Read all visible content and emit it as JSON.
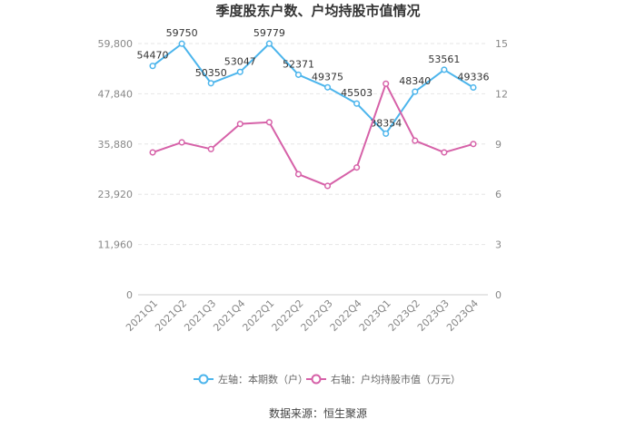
{
  "chart_data": {
    "type": "line",
    "title": "季度股东户数、户均持股市值情况",
    "categories": [
      "2021Q1",
      "2021Q2",
      "2021Q3",
      "2021Q4",
      "2022Q1",
      "2022Q2",
      "2022Q3",
      "2022Q4",
      "2023Q1",
      "2023Q2",
      "2023Q3",
      "2023Q4"
    ],
    "left_axis": {
      "ticks": [
        "0",
        "11,960",
        "23,920",
        "35,880",
        "47,840",
        "59,800"
      ],
      "ylim": [
        0,
        59800
      ]
    },
    "right_axis": {
      "ticks": [
        "0",
        "3",
        "6",
        "9",
        "12",
        "15"
      ],
      "ylim": [
        0,
        15
      ]
    },
    "series": [
      {
        "name": "左轴：本期数（户）",
        "axis": "left",
        "color": "#4cb5ec",
        "values": [
          54470,
          59750,
          50350,
          53047,
          59779,
          52371,
          49375,
          45503,
          38354,
          48340,
          53561,
          49336
        ],
        "labels": [
          "54470",
          "59750",
          "50350",
          "53047",
          "59779",
          "52371",
          "49375",
          "45503",
          "38354",
          "48340",
          "53561",
          "49336"
        ]
      },
      {
        "name": "右轴：户均持股市值（万元）",
        "axis": "right",
        "color": "#d661a8",
        "values": [
          8.5,
          9.1,
          8.7,
          10.2,
          10.3,
          7.2,
          6.5,
          7.6,
          12.6,
          9.2,
          8.5,
          9.0
        ]
      }
    ],
    "grid": true,
    "legend": "bottom"
  },
  "source": "数据来源：恒生聚源"
}
